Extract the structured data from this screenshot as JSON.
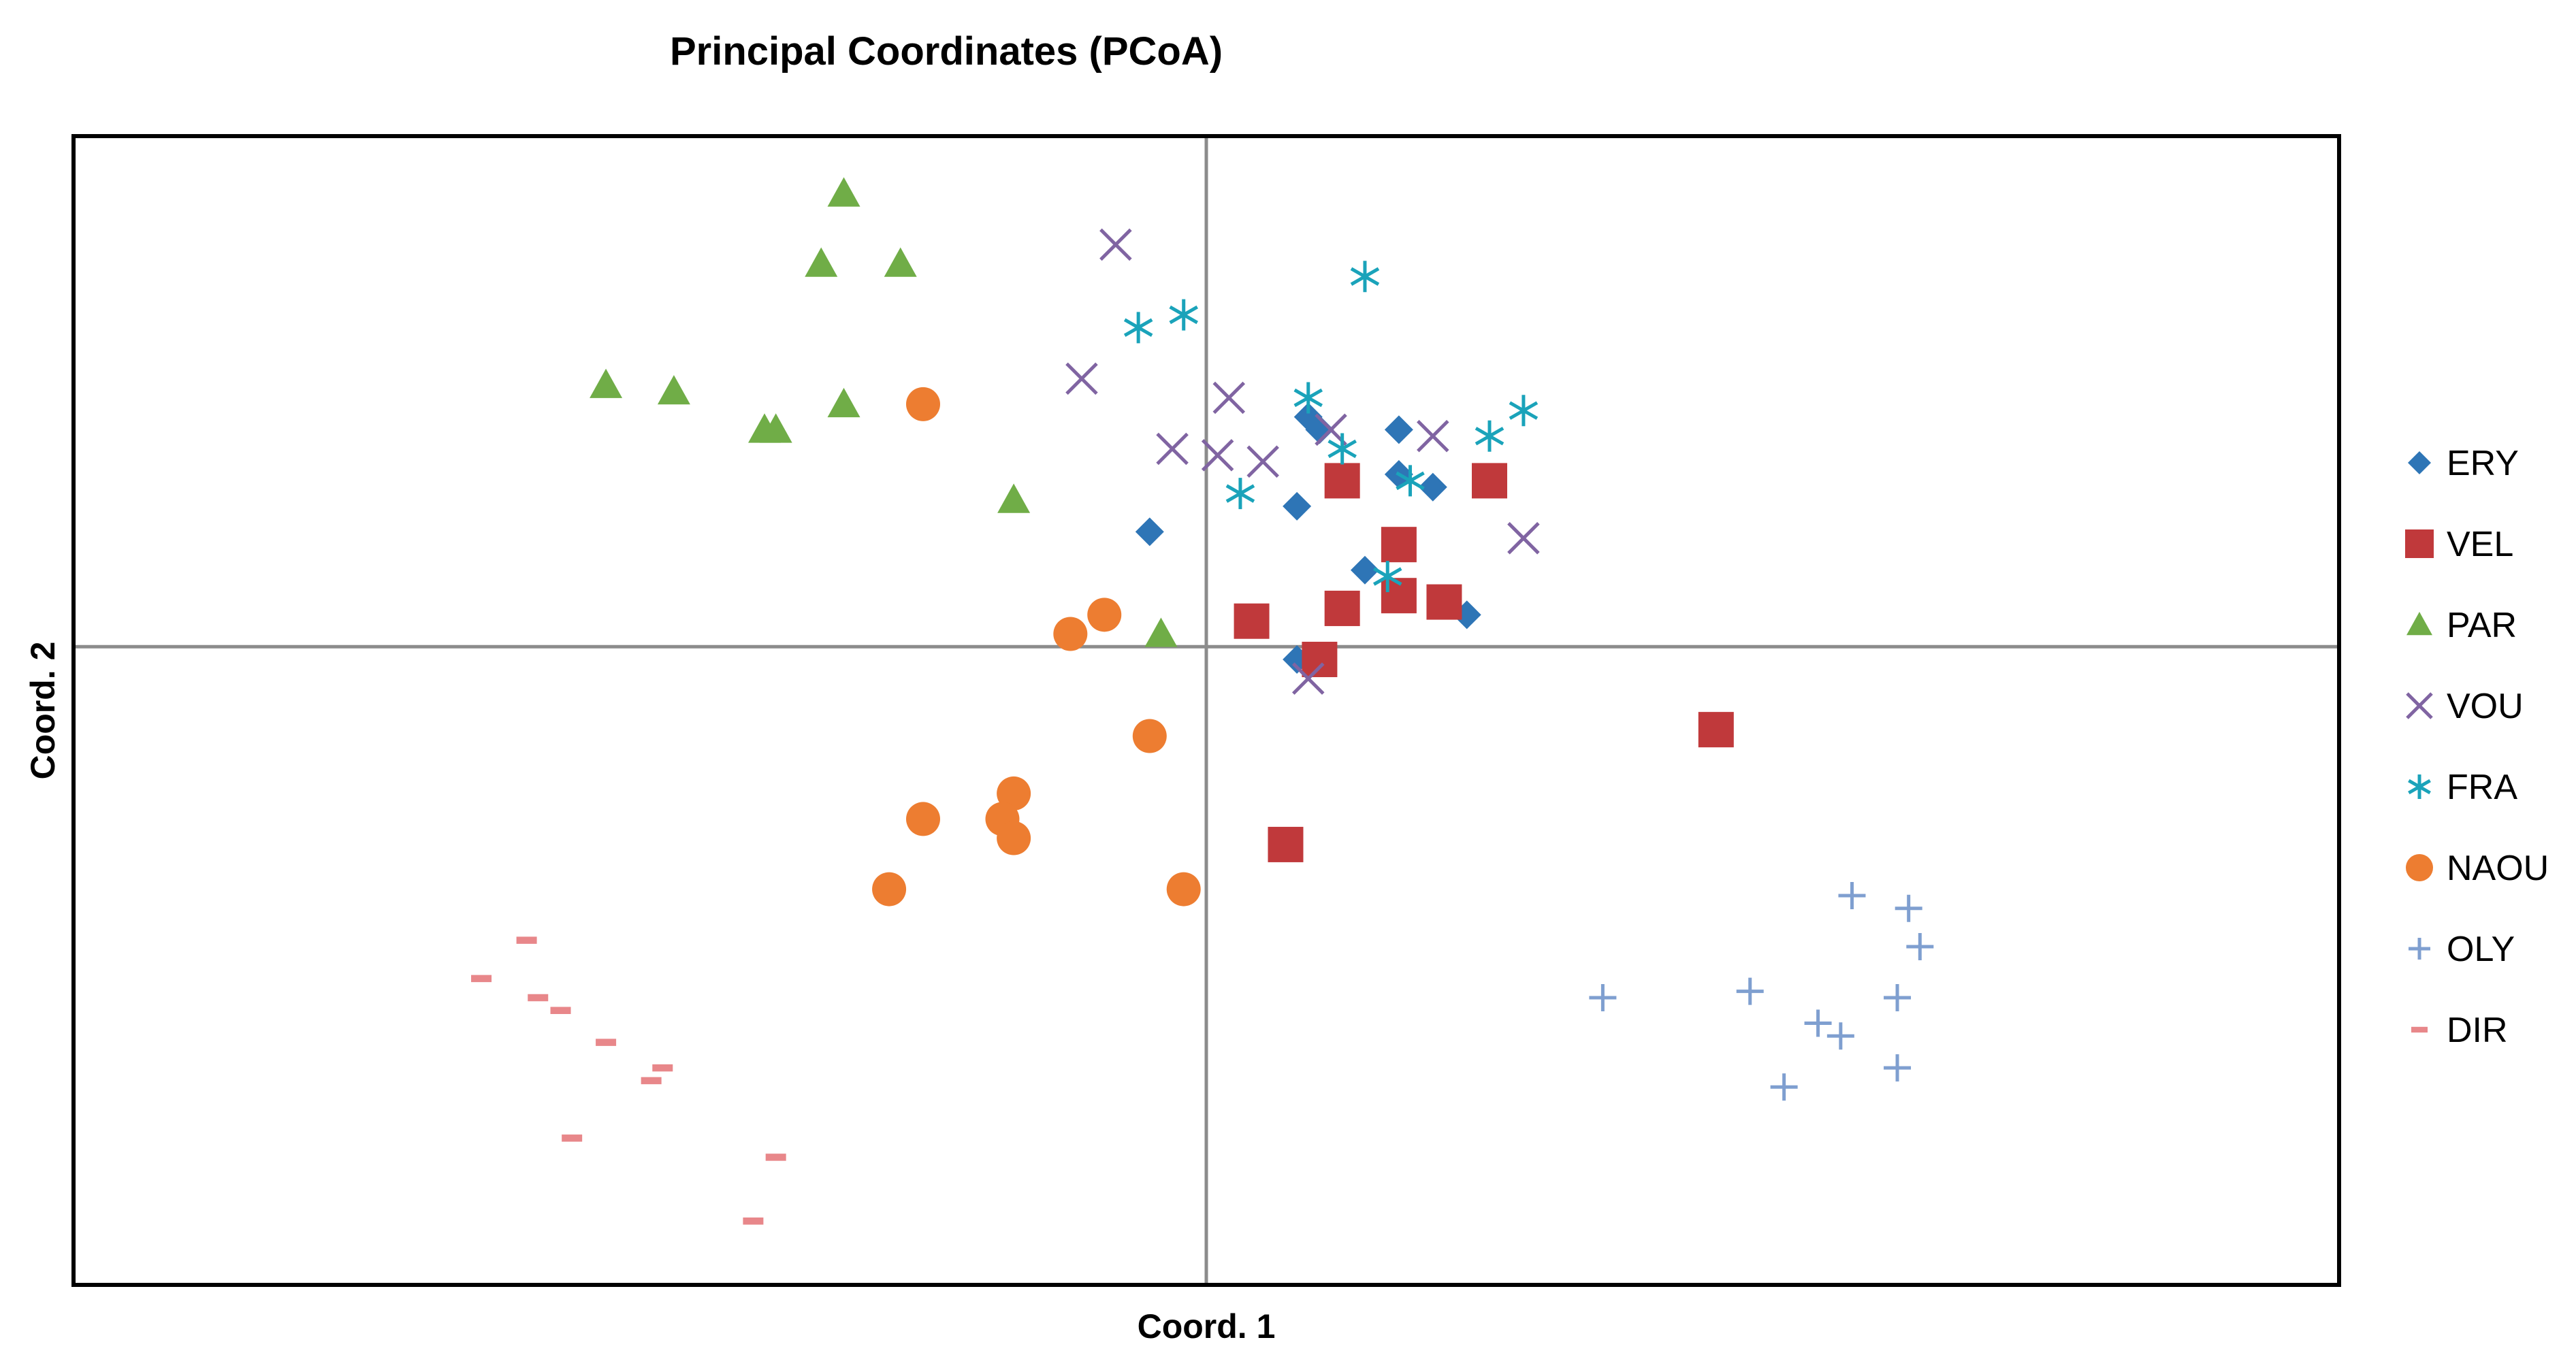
{
  "chart_data": {
    "type": "scatter",
    "title": "Principal Coordinates (PCoA)",
    "xlabel": "Coord. 1",
    "ylabel": "Coord. 2",
    "xlim": [
      -1.0,
      1.0
    ],
    "ylim": [
      -1.0,
      0.8
    ],
    "axis_ticks": false,
    "grid": false,
    "legend_position": "right",
    "series": [
      {
        "name": "ERY",
        "marker": "diamond",
        "color": "#2E75B6",
        "points": [
          [
            -0.05,
            0.18
          ],
          [
            0.08,
            0.22
          ],
          [
            0.09,
            0.36
          ],
          [
            0.1,
            0.34
          ],
          [
            0.14,
            0.12
          ],
          [
            0.17,
            0.27
          ],
          [
            0.17,
            0.34
          ],
          [
            0.2,
            0.25
          ],
          [
            0.23,
            0.05
          ],
          [
            0.08,
            -0.02
          ]
        ]
      },
      {
        "name": "VEL",
        "marker": "square",
        "color": "#C0393B",
        "points": [
          [
            0.04,
            0.04
          ],
          [
            0.1,
            -0.02
          ],
          [
            0.12,
            0.06
          ],
          [
            0.12,
            0.26
          ],
          [
            0.17,
            0.16
          ],
          [
            0.17,
            0.08
          ],
          [
            0.21,
            0.07
          ],
          [
            0.25,
            0.26
          ],
          [
            0.07,
            -0.31
          ],
          [
            0.45,
            -0.13
          ]
        ]
      },
      {
        "name": "PAR",
        "marker": "triangle",
        "color": "#70AD47",
        "points": [
          [
            -0.32,
            0.71
          ],
          [
            -0.34,
            0.6
          ],
          [
            -0.27,
            0.6
          ],
          [
            -0.53,
            0.41
          ],
          [
            -0.47,
            0.4
          ],
          [
            -0.38,
            0.34
          ],
          [
            -0.39,
            0.34
          ],
          [
            -0.32,
            0.38
          ],
          [
            -0.17,
            0.23
          ],
          [
            -0.04,
            0.02
          ]
        ]
      },
      {
        "name": "VOU",
        "marker": "x",
        "color": "#8064A2",
        "points": [
          [
            -0.08,
            0.63
          ],
          [
            -0.11,
            0.42
          ],
          [
            0.02,
            0.39
          ],
          [
            -0.03,
            0.31
          ],
          [
            0.01,
            0.3
          ],
          [
            0.05,
            0.29
          ],
          [
            0.11,
            0.34
          ],
          [
            0.2,
            0.33
          ],
          [
            0.28,
            0.17
          ],
          [
            0.09,
            -0.05
          ]
        ]
      },
      {
        "name": "FRA",
        "marker": "asterisk",
        "color": "#1AA3BA",
        "points": [
          [
            -0.06,
            0.5
          ],
          [
            -0.02,
            0.52
          ],
          [
            0.14,
            0.58
          ],
          [
            0.09,
            0.39
          ],
          [
            0.12,
            0.31
          ],
          [
            0.03,
            0.24
          ],
          [
            0.18,
            0.26
          ],
          [
            0.25,
            0.33
          ],
          [
            0.28,
            0.37
          ],
          [
            0.16,
            0.11
          ]
        ]
      },
      {
        "name": "NAOU",
        "marker": "circle",
        "color": "#ED7D31",
        "points": [
          [
            -0.25,
            0.38
          ],
          [
            -0.09,
            0.05
          ],
          [
            -0.12,
            0.02
          ],
          [
            -0.05,
            -0.14
          ],
          [
            -0.17,
            -0.23
          ],
          [
            -0.25,
            -0.27
          ],
          [
            -0.18,
            -0.27
          ],
          [
            -0.17,
            -0.3
          ],
          [
            -0.28,
            -0.38
          ],
          [
            -0.02,
            -0.38
          ]
        ]
      },
      {
        "name": "OLY",
        "marker": "plus",
        "color": "#7F9FD0",
        "points": [
          [
            0.57,
            -0.39
          ],
          [
            0.62,
            -0.41
          ],
          [
            0.63,
            -0.47
          ],
          [
            0.35,
            -0.55
          ],
          [
            0.48,
            -0.54
          ],
          [
            0.54,
            -0.59
          ],
          [
            0.56,
            -0.61
          ],
          [
            0.61,
            -0.55
          ],
          [
            0.51,
            -0.69
          ],
          [
            0.61,
            -0.66
          ]
        ]
      },
      {
        "name": "DIR",
        "marker": "dash",
        "color": "#E8878A",
        "points": [
          [
            -0.6,
            -0.46
          ],
          [
            -0.64,
            -0.52
          ],
          [
            -0.59,
            -0.55
          ],
          [
            -0.57,
            -0.57
          ],
          [
            -0.53,
            -0.62
          ],
          [
            -0.48,
            -0.66
          ],
          [
            -0.49,
            -0.68
          ],
          [
            -0.56,
            -0.77
          ],
          [
            -0.38,
            -0.8
          ],
          [
            -0.4,
            -0.9
          ]
        ]
      }
    ]
  }
}
